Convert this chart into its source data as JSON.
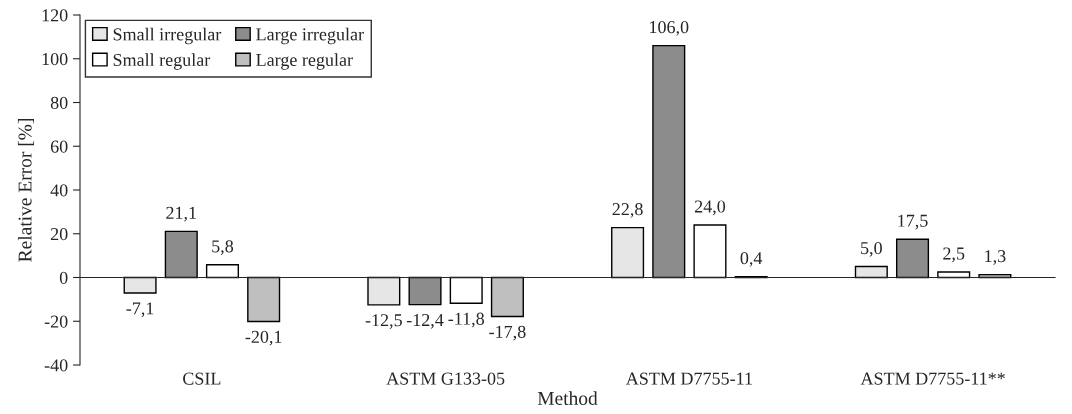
{
  "chart_data": {
    "type": "bar",
    "xlabel": "Method",
    "ylabel": "Relative Error [%]",
    "categories": [
      "CSIL",
      "ASTM G133-05",
      "ASTM D7755-11",
      "ASTM D7755-11**"
    ],
    "series": [
      {
        "name": "Small irregular",
        "color": "#e6e6e6",
        "values": [
          -7.1,
          -12.5,
          22.8,
          5.0
        ],
        "value_labels": [
          "-7,1",
          "-12,5",
          "22,8",
          "5,0"
        ]
      },
      {
        "name": "Large irregular",
        "color": "#8c8c8c",
        "values": [
          21.1,
          -12.4,
          106.0,
          17.5
        ],
        "value_labels": [
          "21,1",
          "-12,4",
          "106,0",
          "17,5"
        ]
      },
      {
        "name": "Small regular",
        "color": "#ffffff",
        "values": [
          5.8,
          -11.8,
          24.0,
          2.5
        ],
        "value_labels": [
          "5,8",
          "-11,8",
          "24,0",
          "2,5"
        ]
      },
      {
        "name": "Large regular",
        "color": "#bfbfbf",
        "values": [
          -20.1,
          -17.8,
          0.4,
          1.3
        ],
        "value_labels": [
          "-20,1",
          "-17,8",
          "0,4",
          "1,3"
        ]
      }
    ],
    "ylim": [
      -40,
      120
    ],
    "yticks": [
      -40,
      -20,
      0,
      20,
      40,
      60,
      80,
      100,
      120
    ],
    "legend": "top left"
  }
}
